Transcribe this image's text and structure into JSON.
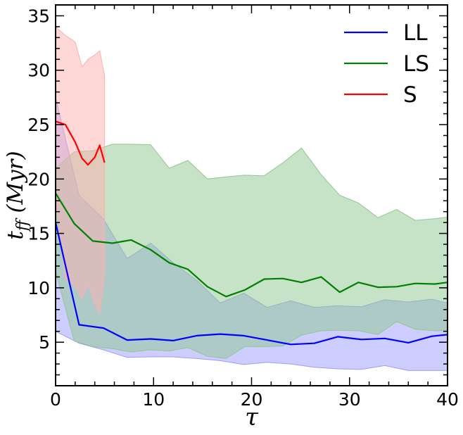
{
  "chart_data": {
    "type": "line",
    "title": "",
    "xlabel": "τ",
    "ylabel": "t_ff (Myr)",
    "xlim": [
      0,
      40
    ],
    "ylim": [
      1,
      36
    ],
    "x_ticks": [
      0,
      10,
      20,
      30,
      40
    ],
    "y_ticks": [
      5,
      10,
      15,
      20,
      25,
      30,
      35
    ],
    "grid": false,
    "legend_position": "top-right",
    "series": [
      {
        "name": "LL",
        "color": "#0000ff",
        "band_color": "#9c9cff",
        "x": [
          0,
          2.4,
          4.9,
          7.3,
          9.7,
          12,
          14.4,
          16.8,
          19.2,
          21.6,
          24,
          26.4,
          28.8,
          31.2,
          33.6,
          36,
          38.4,
          40
        ],
        "values": [
          16,
          6.6,
          6.3,
          5.2,
          5.3,
          5.15,
          5.6,
          5.75,
          5.6,
          5.2,
          4.8,
          4.9,
          5.5,
          5.25,
          5.35,
          4.95,
          5.55,
          5.7
        ],
        "upper": [
          27.5,
          18.5,
          16.3,
          12.7,
          14.1,
          12.3,
          10.7,
          8.6,
          9.5,
          8.2,
          8.8,
          8.2,
          8.35,
          8.25,
          8.9,
          8.7,
          8.95,
          8.6
        ],
        "lower": [
          6.0,
          4.9,
          4.3,
          3.6,
          3.65,
          3.65,
          3.5,
          3.3,
          2.95,
          3.15,
          3.0,
          2.7,
          2.55,
          2.5,
          2.85,
          2.4,
          2.4,
          2.4
        ]
      },
      {
        "name": "LS",
        "color": "#008000",
        "band_color": "#8fc88f",
        "x": [
          0,
          1.9,
          3.8,
          5.8,
          7.7,
          9.7,
          11.6,
          13.5,
          15.5,
          17.4,
          19.3,
          21.3,
          23.2,
          25.1,
          27.1,
          29,
          30.9,
          32.9,
          34.8,
          36.7,
          38.7,
          40
        ],
        "values": [
          18.7,
          15.9,
          14.3,
          14.1,
          14.4,
          13.5,
          12.3,
          11.7,
          10.1,
          9.2,
          9.8,
          10.8,
          10.85,
          10.5,
          11.0,
          9.6,
          10.5,
          10.05,
          10.1,
          10.4,
          10.35,
          10.5
        ],
        "upper": [
          21,
          22.5,
          22.6,
          23.2,
          23.2,
          23.15,
          21.0,
          21.7,
          20.0,
          20.2,
          20.35,
          20.3,
          21.5,
          22.85,
          20.4,
          18.5,
          17.8,
          16.45,
          17.2,
          16.2,
          16.35,
          16.5
        ],
        "lower": [
          11.5,
          5.1,
          4.6,
          4.4,
          4.1,
          4.3,
          4.2,
          4.5,
          3.7,
          3.5,
          4.6,
          4.6,
          4.65,
          5.65,
          6.05,
          6.1,
          6.05,
          5.7,
          6.9,
          6.2,
          6.05,
          6.1
        ]
      },
      {
        "name": "S",
        "color": "#ff0000",
        "band_color": "#ffb0b0",
        "x": [
          0,
          1,
          2,
          2.7,
          3.3,
          4,
          4.5,
          5
        ],
        "values": [
          25.3,
          25.0,
          23.4,
          21.9,
          21.3,
          22.0,
          23.1,
          21.5
        ],
        "upper": [
          34,
          33.2,
          32.6,
          30.3,
          31.0,
          31.4,
          31.8,
          29.5
        ],
        "lower": [
          18.5,
          10.8,
          10.2,
          9.0,
          10.4,
          8.5,
          7.7,
          11.3
        ]
      }
    ]
  }
}
